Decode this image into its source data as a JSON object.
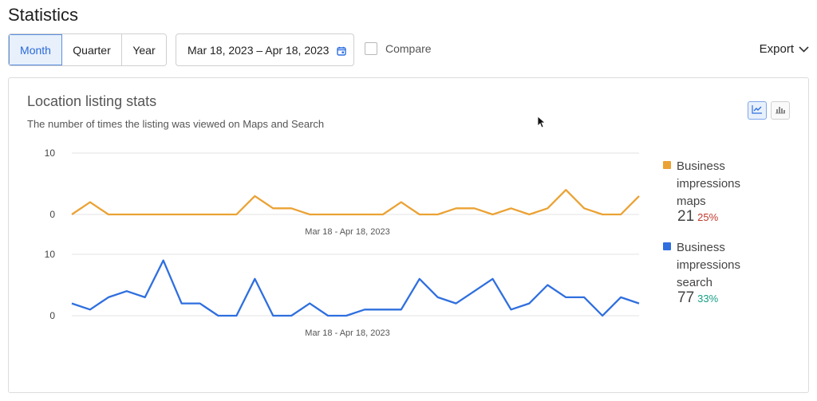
{
  "page_title": "Statistics",
  "period_tabs": [
    {
      "label": "Month",
      "active": true
    },
    {
      "label": "Quarter",
      "active": false
    },
    {
      "label": "Year",
      "active": false
    }
  ],
  "date_range": "Mar 18, 2023 – Apr 18, 2023",
  "compare_label": "Compare",
  "compare_checked": false,
  "export_label": "Export",
  "card": {
    "title": "Location listing stats",
    "subtitle": "The number of times the listing was viewed on Maps and Search"
  },
  "legend": [
    {
      "name": "Business impressions maps",
      "total": "21",
      "change": "25%",
      "color": "#eba234",
      "change_color": "#c0392b"
    },
    {
      "name": "Business impressions search",
      "total": "77",
      "change": "33%",
      "color": "#2f6fdf",
      "change_color": "#16a085"
    }
  ],
  "chart_data": [
    {
      "type": "line",
      "series": [
        {
          "name": "Business impressions maps",
          "color": "#eba234",
          "values": [
            0,
            2,
            0,
            0,
            0,
            0,
            0,
            0,
            0,
            0,
            3,
            1,
            1,
            0,
            0,
            0,
            0,
            0,
            2,
            0,
            0,
            1,
            1,
            0,
            1,
            0,
            1,
            4,
            1,
            0,
            0,
            3
          ]
        }
      ],
      "ylim": [
        0,
        10
      ],
      "yticks": [
        "0",
        "10"
      ],
      "xlabel": "Mar 18 - Apr 18, 2023",
      "grid": true
    },
    {
      "type": "line",
      "series": [
        {
          "name": "Business impressions search",
          "color": "#2f6fdf",
          "values": [
            2,
            1,
            3,
            4,
            3,
            9,
            2,
            2,
            0,
            0,
            6,
            0,
            0,
            2,
            0,
            0,
            1,
            1,
            1,
            6,
            3,
            2,
            4,
            6,
            1,
            2,
            5,
            3,
            3,
            0,
            3,
            2
          ]
        }
      ],
      "ylim": [
        0,
        10
      ],
      "yticks": [
        "0",
        "10"
      ],
      "xlabel": "Mar 18 - Apr 18, 2023",
      "grid": true
    }
  ]
}
